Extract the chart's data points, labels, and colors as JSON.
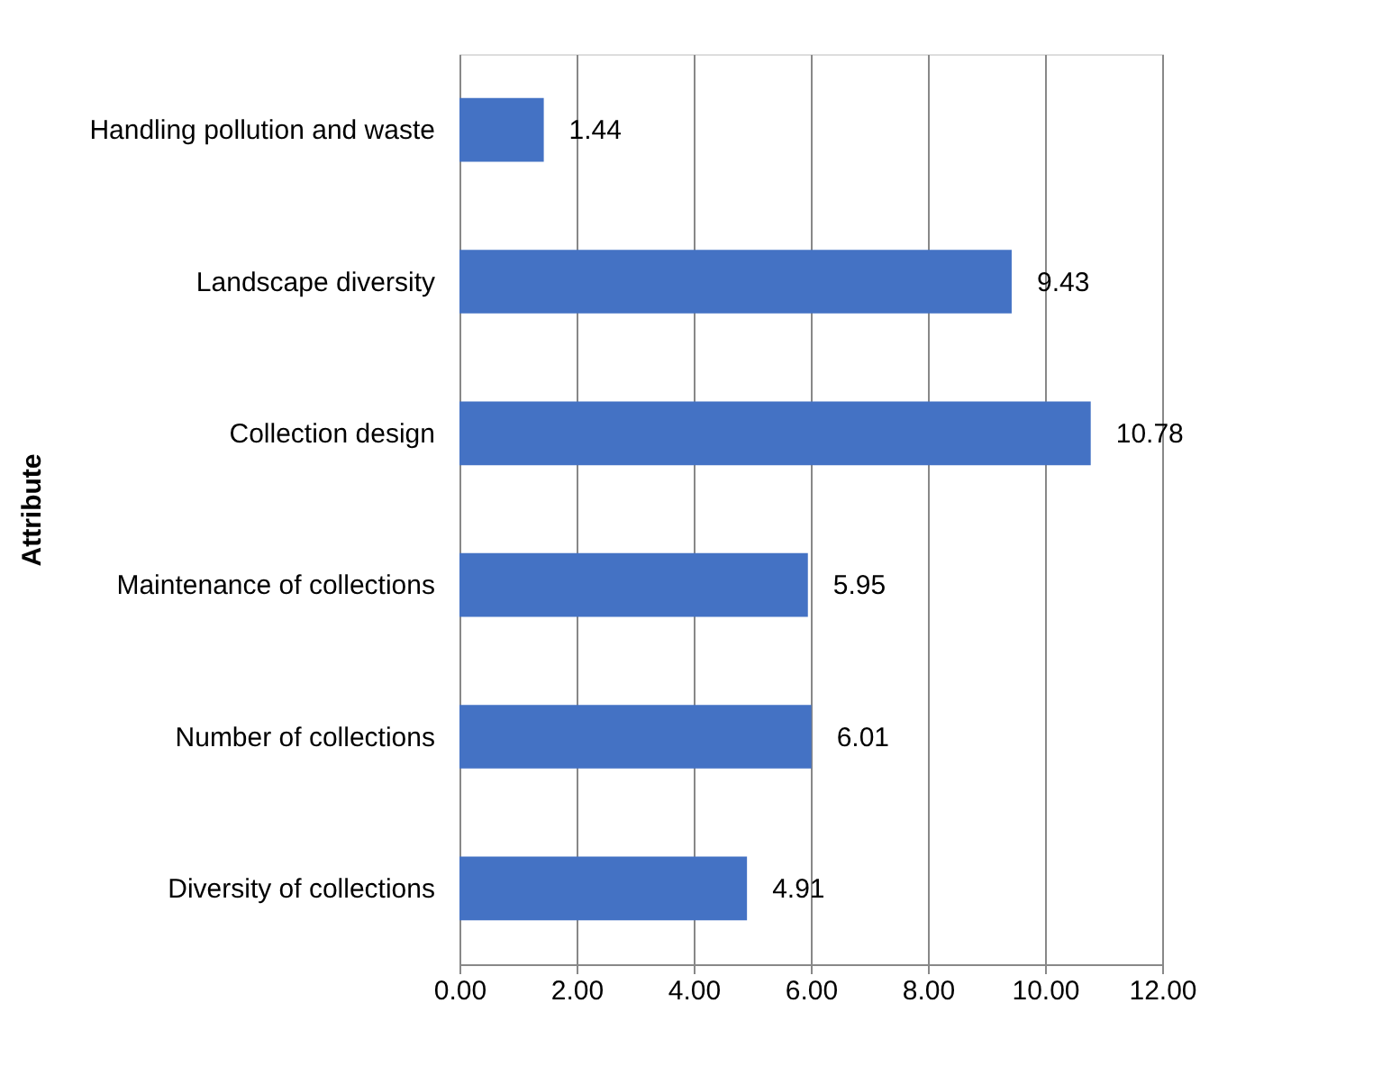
{
  "chart_data": {
    "type": "bar",
    "orientation": "horizontal",
    "ylabel": "Attribute",
    "categories": [
      "Handling pollution and waste",
      "Landscape diversity",
      "Collection design",
      "Maintenance of collections",
      "Number of collections",
      "Diversity of collections"
    ],
    "values": [
      1.44,
      9.43,
      10.78,
      5.95,
      6.01,
      4.91
    ],
    "color": "#4472c4",
    "xlim": [
      0,
      12
    ],
    "xticks": [
      {
        "value": 0,
        "label": "0.00"
      },
      {
        "value": 2,
        "label": "2.00"
      },
      {
        "value": 4,
        "label": "4.00"
      },
      {
        "value": 6,
        "label": "6.00"
      },
      {
        "value": 8,
        "label": "8.00"
      },
      {
        "value": 10,
        "label": "10.00"
      },
      {
        "value": 12,
        "label": "12.00"
      }
    ],
    "grid": "x",
    "data_labels": true
  }
}
